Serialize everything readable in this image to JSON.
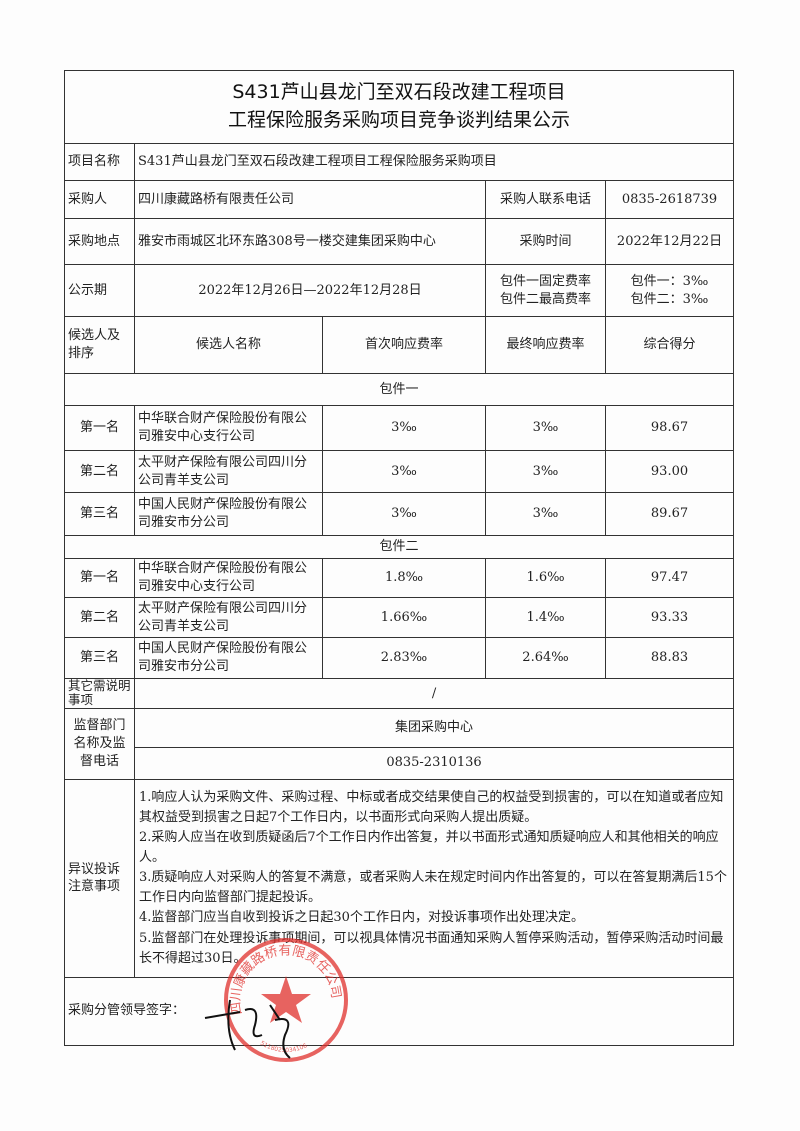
{
  "title": {
    "line1": "S431芦山县龙门至双石段改建工程项目",
    "line2": "工程保险服务采购项目竞争谈判结果公示"
  },
  "info": {
    "project_label": "项目名称",
    "project_value": "S431芦山县龙门至双石段改建工程项目工程保险服务采购项目",
    "buyer_label": "采购人",
    "buyer_value": "四川康藏路桥有限责任公司",
    "phone_label": "采购人联系电话",
    "phone_value": "0835-2618739",
    "place_label": "采购地点",
    "place_value": "雅安市雨城区北环东路308号一楼交建集团采购中心",
    "time_label": "采购时间",
    "time_value": "2022年12月22日",
    "period_label": "公示期",
    "period_value": "2022年12月26日—2022年12月28日",
    "rate_label_1": "包件一固定费率",
    "rate_label_2": "包件二最高费率",
    "rate_value_1": "包件一：3‰",
    "rate_value_2": "包件二：3‰"
  },
  "header": {
    "rank": "候选人及排序",
    "name": "候选人名称",
    "first": "首次响应费率",
    "final": "最终响应费率",
    "score": "综合得分"
  },
  "packages": [
    {
      "label": "包件一",
      "rows": [
        {
          "rank": "第一名",
          "name": "中华联合财产保险股份有限公司雅安中心支行公司",
          "first": "3‰",
          "final": "3‰",
          "score": "98.67"
        },
        {
          "rank": "第二名",
          "name": "太平财产保险有限公司四川分公司青羊支公司",
          "first": "3‰",
          "final": "3‰",
          "score": "93.00"
        },
        {
          "rank": "第三名",
          "name": "中国人民财产保险股份有限公司雅安市分公司",
          "first": "3‰",
          "final": "3‰",
          "score": "89.67"
        }
      ]
    },
    {
      "label": "包件二",
      "rows": [
        {
          "rank": "第一名",
          "name": "中华联合财产保险股份有限公司雅安中心支行公司",
          "first": "1.8‰",
          "final": "1.6‰",
          "score": "97.47"
        },
        {
          "rank": "第二名",
          "name": "太平财产保险有限公司四川分公司青羊支公司",
          "first": "1.66‰",
          "final": "1.4‰",
          "score": "93.33"
        },
        {
          "rank": "第三名",
          "name": "中国人民财产保险股份有限公司雅安市分公司",
          "first": "2.83‰",
          "final": "2.64‰",
          "score": "88.83"
        }
      ]
    }
  ],
  "other": {
    "label": "其它需说明事项",
    "value": "/"
  },
  "supervisor": {
    "label": "监督部门名称及监督电话",
    "name": "集团采购中心",
    "phone": "0835-2310136"
  },
  "complaint": {
    "label": "异议投诉注意事项",
    "items": [
      "1.响应人认为采购文件、采购过程、中标或者成交结果使自己的权益受到损害的，可以在知道或者应知其权益受到损害之日起7个工作日内，以书面形式向采购人提出质疑。",
      "2.采购人应当在收到质疑函后7个工作日内作出答复，并以书面形式通知质疑响应人和其他相关的响应人。",
      "3.质疑响应人对采购人的答复不满意，或者采购人未在规定时间内作出答复的，可以在答复期满后15个工作日内向监督部门提起投诉。",
      "4.监督部门应当自收到投诉之日起30个工作日内，对投诉事项作出处理决定。",
      "5.监督部门在处理投诉事项期间，可以视具体情况书面通知采购人暂停采购活动，暂停采购活动时间最长不得超过30日。"
    ]
  },
  "signature": {
    "label": "采购分管领导签字："
  },
  "stamp": {
    "text": "四川康藏路桥有限责任公司",
    "code": "5118025034106",
    "color": "#e0302c"
  }
}
